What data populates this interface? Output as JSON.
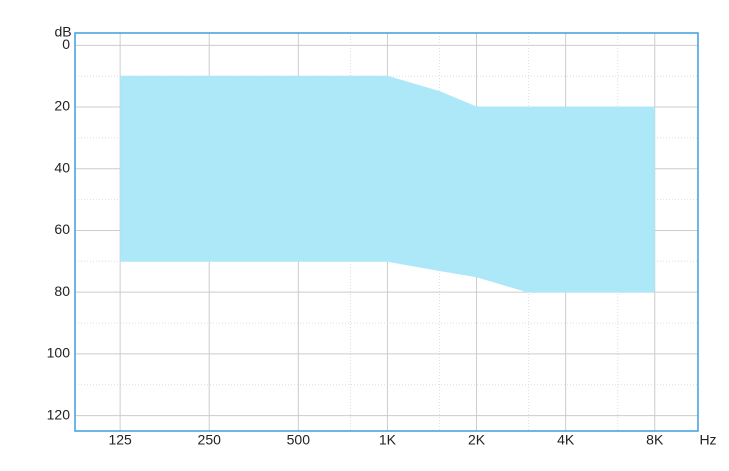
{
  "chart_data": {
    "type": "range_area",
    "x_label": "Hz",
    "y_label": "dB",
    "x": [
      125,
      250,
      500,
      1000,
      1500,
      2000,
      3000,
      4000,
      8000
    ],
    "series": [
      {
        "values": [
          10,
          10,
          10,
          10,
          15,
          20,
          20,
          20,
          20
        ]
      },
      {
        "values": [
          70,
          70,
          70,
          70,
          73,
          75,
          80,
          80,
          80
        ]
      }
    ],
    "color": "#ade8f8",
    "x_scale": "log",
    "y_inverted": true,
    "xlim": [
      88,
      11200
    ],
    "ylim": [
      -4,
      125
    ],
    "xticks": [
      125,
      250,
      500,
      {
        "value": 1000,
        "label": "1K"
      },
      {
        "value": 2000,
        "label": "2K"
      },
      {
        "value": 4000,
        "label": "4K"
      },
      {
        "value": 8000,
        "label": "8K"
      }
    ],
    "x_minor_ticks": [
      750,
      1500,
      3000,
      6000
    ],
    "yticks": [
      0,
      20,
      40,
      60,
      80,
      100,
      120
    ],
    "y_minor_ticks": [
      10,
      30,
      50,
      70,
      90,
      110
    ],
    "grid": true
  }
}
